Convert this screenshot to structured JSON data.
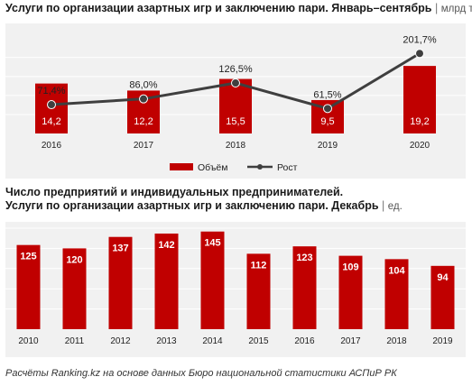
{
  "top": {
    "title": "Услуги по  организации азартных игр и заключению пари. Январь–сентябрь",
    "separator": "|",
    "unit": "млрд тг"
  },
  "bottom": {
    "title_line1": "Число предприятий и индивидуальных предпринимателей.",
    "title_line2": "Услуги по  организации азартных игр и заключению пари. Декабрь",
    "separator": "|",
    "unit": "ед."
  },
  "source": "Расчёты Ranking.kz на основе данных  Бюро национальной  статистики АСПиР РК",
  "colors": {
    "bar": "#c00000",
    "line": "#3f3f3f",
    "panel": "#f1f1f1",
    "grid": "#ffffff"
  },
  "chart_data": [
    {
      "type": "bar",
      "categories": [
        "2016",
        "2017",
        "2018",
        "2019",
        "2020"
      ],
      "series": [
        {
          "name": "Объём",
          "type": "bar",
          "values": [
            14.2,
            12.2,
            15.5,
            9.5,
            19.2
          ],
          "labels": [
            "14,2",
            "12,2",
            "15,5",
            "9,5",
            "19,2"
          ]
        },
        {
          "name": "Рост",
          "type": "line",
          "values": [
            71.4,
            86.0,
            126.5,
            61.5,
            201.7
          ],
          "labels": [
            "71,4%",
            "86,0%",
            "126,5%",
            "61,5%",
            "201,7%"
          ]
        }
      ],
      "legend_position": "bottom-center"
    },
    {
      "type": "bar",
      "categories": [
        "2010",
        "2011",
        "2012",
        "2013",
        "2014",
        "2015",
        "2016",
        "2017",
        "2018",
        "2019"
      ],
      "values": [
        125,
        120,
        137,
        142,
        145,
        112,
        123,
        109,
        104,
        94
      ],
      "labels": [
        "125",
        "120",
        "137",
        "142",
        "145",
        "112",
        "123",
        "109",
        "104",
        "94"
      ]
    }
  ]
}
